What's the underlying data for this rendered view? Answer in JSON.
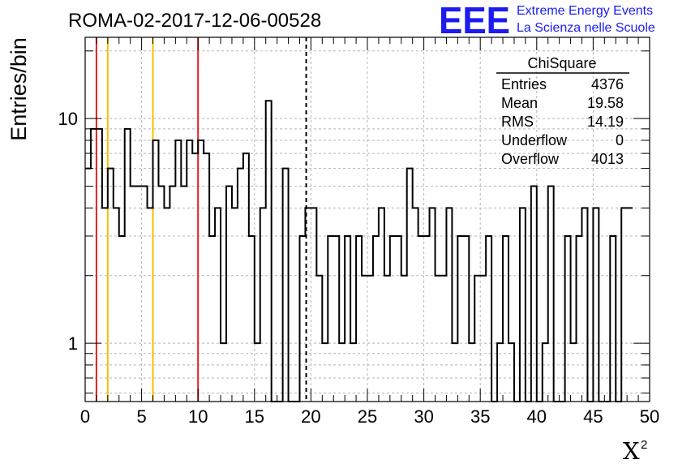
{
  "chart_data": {
    "type": "bar",
    "title": "ROMA-02-2017-12-06-00528",
    "xlabel": "X",
    "xlabel_superscript": "2",
    "ylabel": "Entries/bin",
    "x_range": [
      0,
      50
    ],
    "y_range": [
      0.55,
      23
    ],
    "y_scale": "log",
    "x_ticks": [
      "0",
      "5",
      "10",
      "15",
      "20",
      "25",
      "30",
      "35",
      "40",
      "45",
      "50"
    ],
    "y_ticks": [
      "1",
      "10"
    ],
    "grid": true,
    "bin_width": 0.5,
    "bin_counts": [
      6,
      9,
      9,
      4,
      6,
      4,
      3,
      9,
      5,
      5,
      5,
      4,
      8,
      5,
      4,
      5,
      8,
      5,
      8,
      7,
      8,
      7,
      3,
      4,
      1,
      5,
      4,
      6,
      7,
      3,
      1,
      4,
      12,
      0,
      0,
      6,
      0,
      0,
      3,
      4,
      4,
      2,
      1,
      3,
      3,
      1,
      3,
      1,
      3,
      2,
      2,
      3,
      4,
      2,
      3,
      3,
      2,
      6,
      4,
      3,
      3,
      4,
      2,
      2,
      4,
      1,
      3,
      3,
      1,
      2,
      2,
      3,
      0,
      1,
      3,
      1,
      0,
      4,
      0,
      5,
      0,
      1,
      5,
      0,
      0,
      3,
      1,
      3,
      4,
      0,
      4,
      0,
      0,
      3,
      0,
      4,
      4
    ],
    "vertical_lines": [
      {
        "x": 1,
        "color": "#e02020",
        "style": "solid"
      },
      {
        "x": 2,
        "color": "#f5c000",
        "style": "solid"
      },
      {
        "x": 6,
        "color": "#f5c000",
        "style": "solid"
      },
      {
        "x": 10,
        "color": "#e02020",
        "style": "solid"
      },
      {
        "x": 19.58,
        "color": "#000000",
        "style": "dashed"
      }
    ],
    "stats_box": {
      "title": "ChiSquare",
      "rows": [
        {
          "label": "Entries",
          "value": "4376"
        },
        {
          "label": "Mean",
          "value": "19.58"
        },
        {
          "label": "RMS",
          "value": "14.19"
        },
        {
          "label": "Underflow",
          "value": "0"
        },
        {
          "label": "Overflow",
          "value": "4013"
        }
      ]
    }
  },
  "logo": {
    "letters": "EEE",
    "line1": "Extreme Energy Events",
    "line2": "La Scienza nelle Scuole",
    "color": "#1c1cf0"
  }
}
